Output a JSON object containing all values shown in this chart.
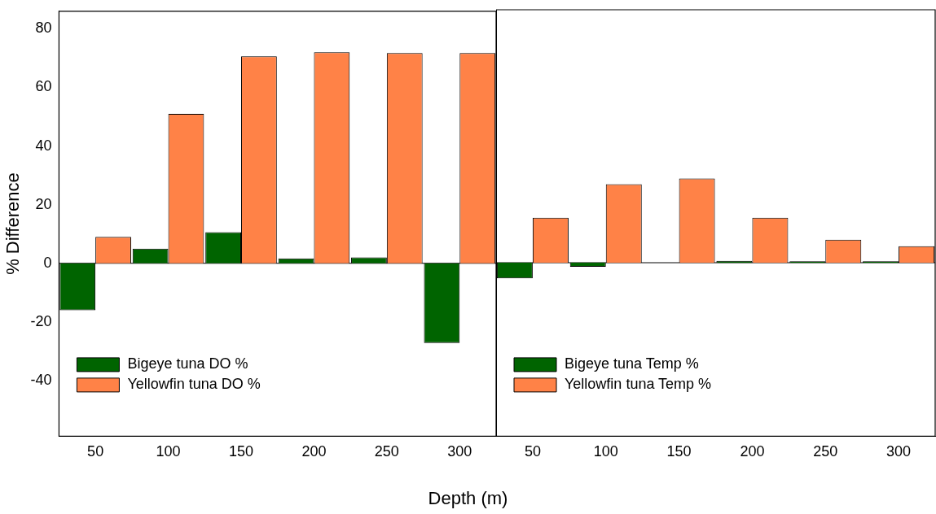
{
  "chart_data": [
    {
      "type": "bar",
      "xlabel": "Depth (m)",
      "ylabel": "% Difference",
      "categories": [
        "50",
        "100",
        "150",
        "200",
        "250",
        "300"
      ],
      "series": [
        {
          "name": "Bigeye tuna DO %",
          "color": "#006400",
          "values": [
            -16,
            5,
            10.6,
            1.7,
            2,
            -27.2
          ]
        },
        {
          "name": "Yellowfin tuna DO %",
          "color": "#ff8247",
          "values": [
            9,
            51,
            70.6,
            72,
            71.7,
            71.7
          ]
        }
      ],
      "ylim": [
        -59,
        86
      ],
      "yticks": [
        -40,
        -20,
        0,
        20,
        40,
        60,
        80
      ],
      "ref_lines": [
        {
          "axis": "y",
          "value": 0
        }
      ],
      "legend": "bottom left",
      "grid": false
    },
    {
      "type": "bar",
      "categories": [
        "50",
        "100",
        "150",
        "200",
        "250",
        "300"
      ],
      "series": [
        {
          "name": "Bigeye tuna Temp %",
          "color": "#006400",
          "values": [
            -5.3,
            -1.4,
            null,
            0.6,
            0.5,
            0.5
          ]
        },
        {
          "name": "Yellowfin tuna Temp %",
          "color": "#ff8247",
          "values": [
            15.3,
            26.7,
            28.6,
            15.3,
            7.8,
            5.6
          ]
        }
      ],
      "ylim": [
        -59,
        86
      ],
      "yticks": [
        -40,
        -20,
        0,
        20,
        40,
        60,
        80
      ],
      "ref_lines": [
        {
          "axis": "y",
          "value": 0
        }
      ],
      "legend": "bottom left",
      "grid": false,
      "tick_labels": "x"
    }
  ]
}
